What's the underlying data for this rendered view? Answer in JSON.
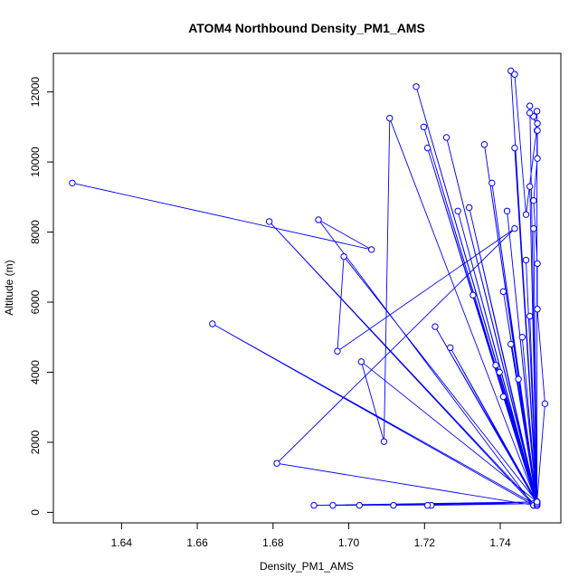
{
  "chart_data": {
    "type": "line",
    "title": "ATOM4 Northbound Density_PM1_AMS",
    "xlabel": "Density_PM1_AMS",
    "ylabel": "Altitude (m)",
    "xlim": [
      1.622,
      1.756
    ],
    "ylim": [
      -300,
      13100
    ],
    "xticks": [
      "1.64",
      "1.66",
      "1.68",
      "1.70",
      "1.72",
      "1.74"
    ],
    "xtick_values": [
      1.64,
      1.66,
      1.68,
      1.7,
      1.72,
      1.74
    ],
    "yticks": [
      "0",
      "2000",
      "4000",
      "6000",
      "8000",
      "10000",
      "12000"
    ],
    "ytick_values": [
      0,
      2000,
      4000,
      6000,
      8000,
      10000,
      12000
    ],
    "grid": false,
    "marker": "open-circle",
    "line_color": "#0000ff",
    "series": [
      {
        "points": [
          [
            1.627,
            9400
          ],
          [
            1.706,
            7500
          ],
          [
            1.692,
            8350
          ],
          [
            1.7488,
            200
          ],
          [
            1.679,
            8300
          ],
          [
            1.7488,
            250
          ],
          [
            1.664,
            5380
          ],
          [
            1.7488,
            200
          ],
          [
            1.681,
            1400
          ],
          [
            1.7438,
            8100
          ],
          [
            1.697,
            4600
          ],
          [
            1.6987,
            7300
          ],
          [
            1.7497,
            300
          ],
          [
            1.7033,
            4300
          ],
          [
            1.7093,
            2020
          ],
          [
            1.7108,
            11250
          ],
          [
            1.7497,
            250
          ],
          [
            1.7178,
            12150
          ],
          [
            1.7497,
            300
          ],
          [
            1.7208,
            10400
          ],
          [
            1.7497,
            200
          ],
          [
            1.7198,
            11000
          ],
          [
            1.7497,
            250
          ],
          [
            1.7258,
            10700
          ],
          [
            1.7497,
            300
          ],
          [
            1.7358,
            10500
          ],
          [
            1.7497,
            200
          ],
          [
            1.7438,
            10400
          ],
          [
            1.7497,
            300
          ],
          [
            1.7428,
            12600
          ],
          [
            1.7497,
            250
          ],
          [
            1.7478,
            11600
          ],
          [
            1.7497,
            200
          ],
          [
            1.7497,
            11450
          ],
          [
            1.7497,
            300
          ],
          [
            1.7497,
            10900
          ],
          [
            1.7497,
            250
          ],
          [
            1.7478,
            9300
          ],
          [
            1.7497,
            200
          ],
          [
            1.7378,
            9400
          ],
          [
            1.7497,
            300
          ],
          [
            1.7488,
            8100
          ],
          [
            1.7497,
            250
          ],
          [
            1.7328,
            6200
          ],
          [
            1.7497,
            200
          ],
          [
            1.7408,
            3300
          ],
          [
            1.7497,
            250
          ],
          [
            1.7228,
            5300
          ],
          [
            1.7497,
            300
          ],
          [
            1.7398,
            4000
          ],
          [
            1.7497,
            200
          ],
          [
            1.7448,
            3800
          ],
          [
            1.7497,
            250
          ],
          [
            1.7468,
            7200
          ],
          [
            1.7497,
            300
          ],
          [
            1.7408,
            6300
          ],
          [
            1.7497,
            200
          ],
          [
            1.7428,
            4800
          ],
          [
            1.7497,
            250
          ],
          [
            1.7458,
            5000
          ],
          [
            1.7497,
            300
          ],
          [
            1.7478,
            5600
          ],
          [
            1.7497,
            200
          ],
          [
            1.7388,
            4200
          ],
          [
            1.7497,
            250
          ],
          [
            1.7418,
            8600
          ],
          [
            1.7497,
            300
          ],
          [
            1.7318,
            8700
          ],
          [
            1.7497,
            200
          ],
          [
            1.7288,
            8600
          ],
          [
            1.7497,
            250
          ],
          [
            1.7268,
            4700
          ],
          [
            1.7497,
            300
          ],
          [
            1.7218,
            200
          ],
          [
            1.7497,
            250
          ],
          [
            1.7208,
            200
          ],
          [
            1.7497,
            300
          ],
          [
            1.7118,
            200
          ],
          [
            1.7497,
            250
          ],
          [
            1.7028,
            200
          ],
          [
            1.7497,
            300
          ],
          [
            1.6958,
            200
          ],
          [
            1.7497,
            250
          ],
          [
            1.6908,
            200
          ],
          [
            1.7497,
            300
          ],
          [
            1.7518,
            3100
          ],
          [
            1.7498,
            5800
          ],
          [
            1.7498,
            7100
          ],
          [
            1.7488,
            8900
          ],
          [
            1.7498,
            10100
          ],
          [
            1.7498,
            10900
          ],
          [
            1.7488,
            11300
          ],
          [
            1.7478,
            11400
          ],
          [
            1.7498,
            11100
          ],
          [
            1.7468,
            8500
          ],
          [
            1.7438,
            12500
          ]
        ]
      }
    ]
  }
}
